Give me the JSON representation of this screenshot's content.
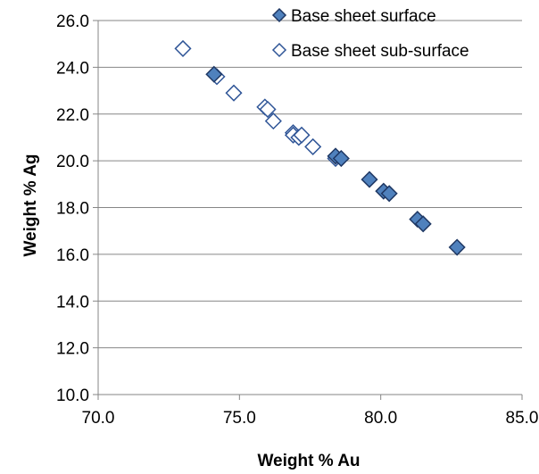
{
  "chart_data": {
    "type": "scatter",
    "xlabel": "Weight % Au",
    "ylabel": "Weight % Ag",
    "xlim": [
      70.0,
      85.0
    ],
    "ylim": [
      10.0,
      26.0
    ],
    "x_ticks": [
      "70.0",
      "75.0",
      "80.0",
      "85.0"
    ],
    "y_ticks": [
      "10.0",
      "12.0",
      "14.0",
      "16.0",
      "18.0",
      "20.0",
      "22.0",
      "24.0",
      "26.0"
    ],
    "x_tick_values": [
      70,
      75,
      80,
      85
    ],
    "y_tick_values": [
      10,
      12,
      14,
      16,
      18,
      20,
      22,
      24,
      26
    ],
    "grid": "horizontal",
    "legend_position": "top-right",
    "series": [
      {
        "name": "Base sheet surface",
        "marker": "filled-diamond",
        "color": "#4F81BD",
        "edge_color": "#1F3864",
        "points": [
          {
            "x": 74.1,
            "y": 23.7
          },
          {
            "x": 78.4,
            "y": 20.2
          },
          {
            "x": 78.6,
            "y": 20.1
          },
          {
            "x": 79.6,
            "y": 19.2
          },
          {
            "x": 80.1,
            "y": 18.7
          },
          {
            "x": 80.3,
            "y": 18.6
          },
          {
            "x": 81.3,
            "y": 17.5
          },
          {
            "x": 81.5,
            "y": 17.3
          },
          {
            "x": 82.7,
            "y": 16.3
          }
        ]
      },
      {
        "name": "Base sheet sub-surface",
        "marker": "hollow-diamond",
        "color": "#ffffff",
        "edge_color": "#2F5597",
        "points": [
          {
            "x": 73.0,
            "y": 24.8
          },
          {
            "x": 74.2,
            "y": 23.6
          },
          {
            "x": 74.8,
            "y": 22.9
          },
          {
            "x": 75.9,
            "y": 22.3
          },
          {
            "x": 76.0,
            "y": 22.2
          },
          {
            "x": 76.2,
            "y": 21.7
          },
          {
            "x": 76.9,
            "y": 21.2
          },
          {
            "x": 76.9,
            "y": 21.1
          },
          {
            "x": 77.1,
            "y": 21.0
          },
          {
            "x": 77.2,
            "y": 21.1
          },
          {
            "x": 77.6,
            "y": 20.6
          },
          {
            "x": 78.4,
            "y": 20.1
          }
        ]
      }
    ]
  }
}
